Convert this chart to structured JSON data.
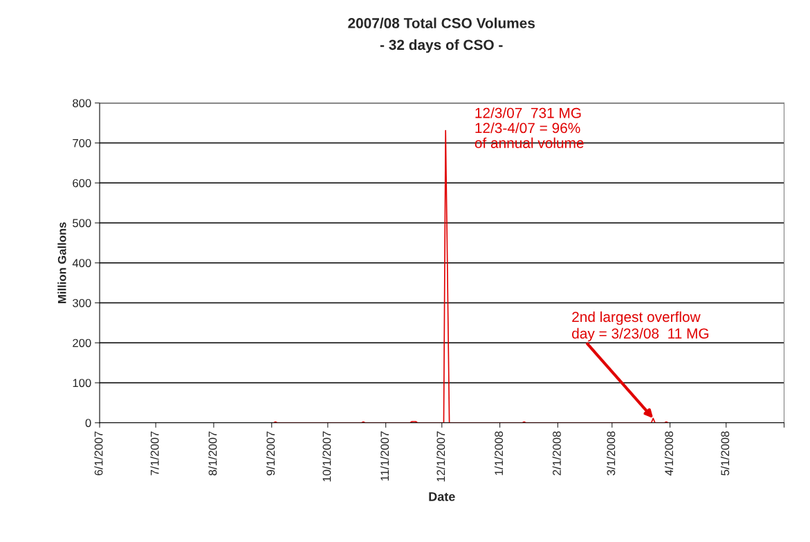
{
  "chart_data": {
    "type": "line",
    "title": "2007/08 Total CSO Volumes",
    "subtitle": "- 32 days of CSO -",
    "xlabel": "Date",
    "ylabel": "Million Gallons",
    "x": [
      "2007-09-02",
      "2007-09-03",
      "2007-09-04",
      "2007-10-19",
      "2007-10-20",
      "2007-10-21",
      "2007-11-14",
      "2007-11-15",
      "2007-11-17",
      "2007-11-18",
      "2007-12-02",
      "2007-12-03",
      "2007-12-04",
      "2007-12-05",
      "2008-01-13",
      "2008-01-14",
      "2008-01-15",
      "2008-03-22",
      "2008-03-23",
      "2008-03-24",
      "2008-03-29",
      "2008-03-30",
      "2008-03-31"
    ],
    "series": [
      {
        "color": "#e00000",
        "values": [
          0,
          2,
          0,
          0,
          2,
          0,
          0,
          3,
          3,
          0,
          0,
          731,
          380,
          0,
          0,
          2,
          0,
          0,
          11,
          0,
          0,
          2,
          0
        ]
      }
    ],
    "xlim": [
      "2007-06-01",
      "2008-06-01"
    ],
    "xticks": [
      {
        "value": "2007-06-01",
        "label": "6/1/2007"
      },
      {
        "value": "2007-07-01",
        "label": "7/1/2007"
      },
      {
        "value": "2007-08-01",
        "label": "8/1/2007"
      },
      {
        "value": "2007-09-01",
        "label": "9/1/2007"
      },
      {
        "value": "2007-10-01",
        "label": "10/1/2007"
      },
      {
        "value": "2007-11-01",
        "label": "11/1/2007"
      },
      {
        "value": "2007-12-01",
        "label": "12/1/2007"
      },
      {
        "value": "2008-01-01",
        "label": "1/1/2008"
      },
      {
        "value": "2008-02-01",
        "label": "2/1/2008"
      },
      {
        "value": "2008-03-01",
        "label": "3/1/2008"
      },
      {
        "value": "2008-04-01",
        "label": "4/1/2008"
      },
      {
        "value": "2008-05-01",
        "label": "5/1/2008"
      },
      {
        "value": "2008-06-01",
        "label": null
      }
    ],
    "ylim": [
      0,
      800
    ],
    "yticks": [
      0,
      100,
      200,
      300,
      400,
      500,
      600,
      700,
      800
    ],
    "grid": "y",
    "marker": "none",
    "line_style": "solid",
    "annotations": [
      {
        "text": "12/3/07  731 MG\n12/3-4/07 = 96%\nof annual volume",
        "x": "2007-12-03",
        "y": 731
      },
      {
        "text": "2nd largest overflow\nday = 3/23/08  11 MG",
        "x": "2008-03-23",
        "y": 11
      }
    ]
  }
}
